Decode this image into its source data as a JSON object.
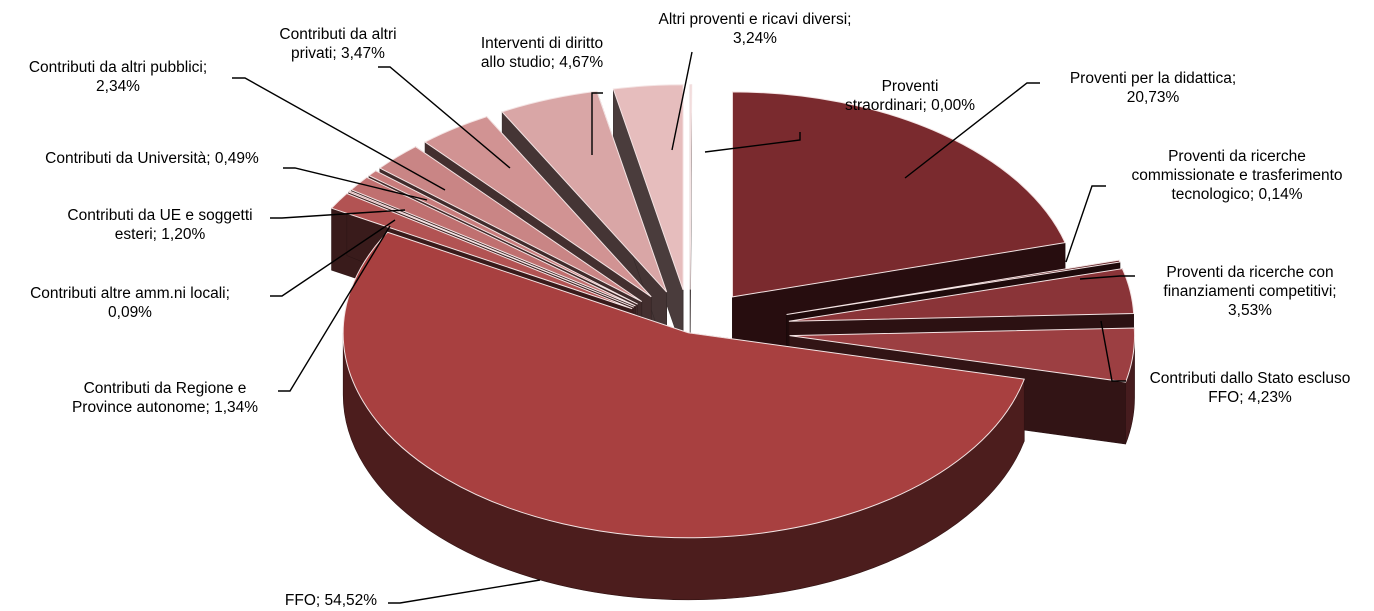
{
  "chart_data": {
    "type": "pie",
    "style": "3d-exploded",
    "title": "",
    "slices": [
      {
        "label": "Proventi per la didattica",
        "value_label": "20,73%",
        "value": 20.73,
        "color": "#7a2a2e"
      },
      {
        "label": "Proventi da ricerche commissionate e trasferimento tecnologico",
        "value_label": "0,14%",
        "value": 0.14,
        "color": "#5e1e22"
      },
      {
        "label": "Proventi da ricerche con finanziamenti competitivi",
        "value_label": "3,53%",
        "value": 3.53,
        "color": "#8a3438"
      },
      {
        "label": "Contributi dallo Stato escluso FFO",
        "value_label": "4,23%",
        "value": 4.23,
        "color": "#9c3f42"
      },
      {
        "label": "FFO",
        "value_label": "54,52%",
        "value": 54.52,
        "color": "#a84040"
      },
      {
        "label": "Contributi da Regione e Province autonome",
        "value_label": "1,34%",
        "value": 1.34,
        "color": "#b25353"
      },
      {
        "label": "Contributi altre amm.ni locali",
        "value_label": "0,09%",
        "value": 0.09,
        "color": "#b86060"
      },
      {
        "label": "Contributi da UE e soggetti esteri",
        "value_label": "1,20%",
        "value": 1.2,
        "color": "#c07070"
      },
      {
        "label": "Contributi da Università",
        "value_label": "0,49%",
        "value": 0.49,
        "color": "#c87c7c"
      },
      {
        "label": "Contributi da altri pubblici",
        "value_label": "2,34%",
        "value": 2.34,
        "color": "#c98585"
      },
      {
        "label": "Contributi da altri privati",
        "value_label": "3,47%",
        "value": 3.47,
        "color": "#d19393"
      },
      {
        "label": "Interventi di diritto allo studio",
        "value_label": "4,67%",
        "value": 4.67,
        "color": "#d9a6a6"
      },
      {
        "label": "Altri proventi e ricavi diversi",
        "value_label": "3,24%",
        "value": 3.24,
        "color": "#e6bdbd"
      },
      {
        "label": "Proventi straordinari",
        "value_label": "0,00%",
        "value": 0.0,
        "color": "#eecccc"
      }
    ],
    "label_lines": [
      [
        "Proventi per la didattica;",
        "20,73%"
      ],
      [
        "Proventi da ricerche",
        "commissionate e trasferimento",
        "tecnologico; 0,14%"
      ],
      [
        "Proventi da ricerche con",
        "finanziamenti competitivi;",
        "3,53%"
      ],
      [
        "Contributi dallo Stato escluso",
        "FFO; 4,23%"
      ],
      [
        "FFO; 54,52%"
      ],
      [
        "Contributi da Regione e",
        "Province autonome; 1,34%"
      ],
      [
        "Contributi altre amm.ni locali;",
        "0,09%"
      ],
      [
        "Contributi da UE e soggetti",
        "esteri; 1,20%"
      ],
      [
        "Contributi da Università; 0,49%"
      ],
      [
        "Contributi da altri pubblici;",
        "2,34%"
      ],
      [
        "Contributi da altri",
        "privati; 3,47%"
      ],
      [
        "Interventi di diritto",
        "allo studio; 4,67%"
      ],
      [
        "Altri proventi e ricavi diversi;",
        "3,24%"
      ],
      [
        "Proventi",
        "straordinari; 0,00%"
      ]
    ],
    "legend": "none",
    "start_angle_deg": -90,
    "direction": "clockwise"
  }
}
